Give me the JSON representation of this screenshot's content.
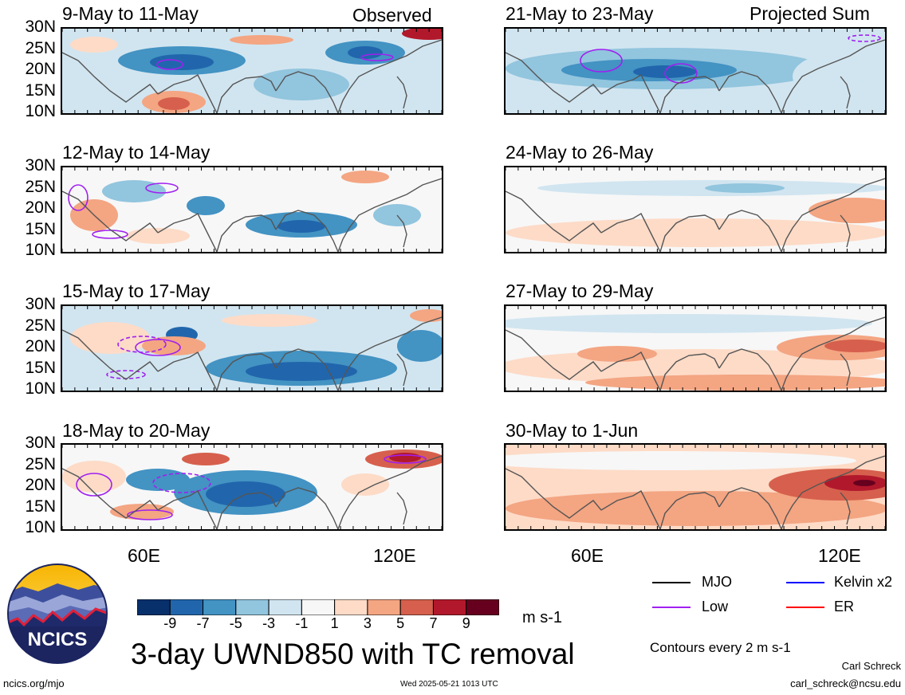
{
  "headers": {
    "left": "Observed",
    "right": "Projected Sum"
  },
  "lat_labels": [
    "30N",
    "25N",
    "20N",
    "15N",
    "10N"
  ],
  "lon_labels": [
    "60E",
    "120E"
  ],
  "panels": [
    {
      "id": "p1",
      "title": "9-May to 11-May"
    },
    {
      "id": "p2",
      "title": "12-May to 14-May"
    },
    {
      "id": "p3",
      "title": "15-May to 17-May"
    },
    {
      "id": "p4",
      "title": "18-May to 20-May"
    },
    {
      "id": "p5",
      "title": "21-May to 23-May"
    },
    {
      "id": "p6",
      "title": "24-May to 26-May"
    },
    {
      "id": "p7",
      "title": "27-May to 29-May"
    },
    {
      "id": "p8",
      "title": "30-May to 1-Jun"
    }
  ],
  "colorbar": {
    "labels": [
      "-9",
      "-7",
      "-5",
      "-3",
      "-1",
      "1",
      "3",
      "5",
      "7",
      "9"
    ],
    "colors": [
      "#08306b",
      "#2166ac",
      "#4393c3",
      "#92c5de",
      "#d1e5f0",
      "#f7f7f7",
      "#fddbc7",
      "#f4a582",
      "#d6604d",
      "#b2182b",
      "#67001f"
    ],
    "units": "m s-1"
  },
  "legend": {
    "items": [
      {
        "label": "MJO",
        "color": "#000000"
      },
      {
        "label": "Kelvin x2",
        "color": "#0000ff"
      },
      {
        "label": "Low",
        "color": "#a020f0"
      },
      {
        "label": "ER",
        "color": "#ff0000"
      }
    ],
    "contours_note": "Contours every 2 m s-1"
  },
  "main_title": "3-day UWND850 with TC removal",
  "logo_text": "NCICS",
  "footer": {
    "url": "ncics.org/mjo",
    "timestamp": "Wed 2025-05-21 1013 UTC",
    "author": "Carl Schreck",
    "email": "carl_schreck@ncsu.edu"
  }
}
